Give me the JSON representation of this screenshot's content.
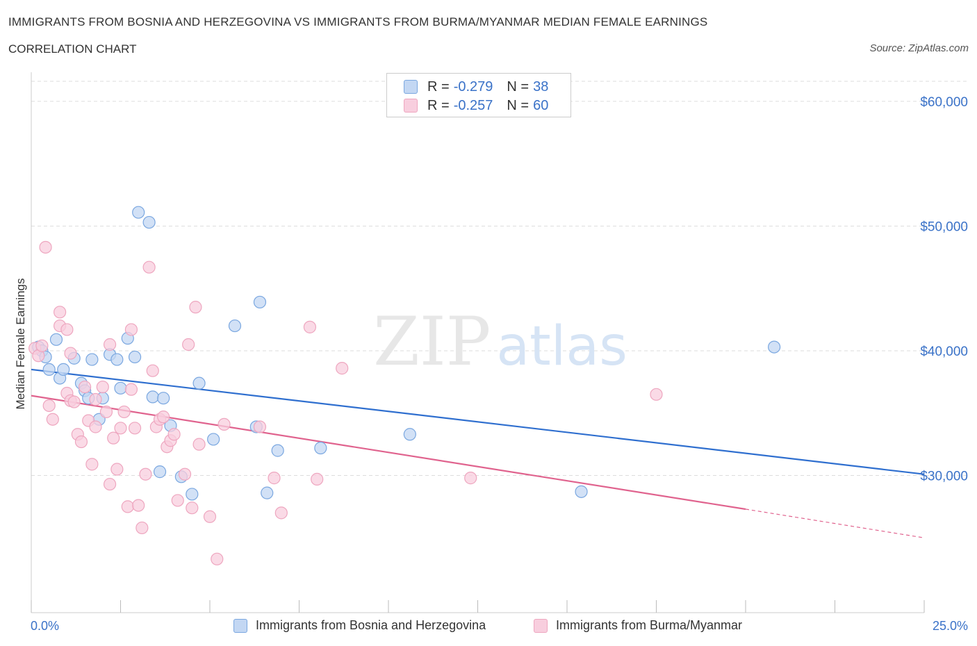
{
  "chart_data": {
    "type": "scatter",
    "title": "IMMIGRANTS FROM BOSNIA AND HERZEGOVINA VS IMMIGRANTS FROM BURMA/MYANMAR MEDIAN FEMALE EARNINGS",
    "subtitle": "CORRELATION CHART",
    "source": "Source: ZipAtlas.com",
    "ylabel": "Median Female Earnings",
    "x_min_label": "0.0%",
    "x_max_label": "25.0%",
    "xlim": [
      0,
      25
    ],
    "ylim": [
      19000,
      62000
    ],
    "y_ticks": [
      30000,
      40000,
      50000,
      60000
    ],
    "y_tick_labels": [
      "$30,000",
      "$40,000",
      "$50,000",
      "$60,000"
    ],
    "watermark": "ZIPatlas",
    "series": [
      {
        "name": "Immigrants from Bosnia and Herzegovina",
        "color": "#7aa7e0",
        "fill": "#c3d7f3",
        "line_color": "#2f6fcf",
        "R": "-0.279",
        "N": "38",
        "trend": {
          "x0": 0,
          "y0": 38500,
          "x1": 25,
          "y1": 30100
        },
        "points": [
          [
            0.2,
            40300
          ],
          [
            0.3,
            40000
          ],
          [
            0.4,
            39500
          ],
          [
            0.5,
            38500
          ],
          [
            0.7,
            40900
          ],
          [
            0.8,
            37800
          ],
          [
            0.9,
            38500
          ],
          [
            1.2,
            39400
          ],
          [
            1.4,
            37400
          ],
          [
            1.5,
            36800
          ],
          [
            1.6,
            36200
          ],
          [
            1.7,
            39300
          ],
          [
            1.9,
            34500
          ],
          [
            2.0,
            36200
          ],
          [
            2.2,
            39700
          ],
          [
            2.4,
            39300
          ],
          [
            2.5,
            37000
          ],
          [
            2.7,
            41000
          ],
          [
            2.9,
            39500
          ],
          [
            3.0,
            51100
          ],
          [
            3.3,
            50300
          ],
          [
            3.4,
            36300
          ],
          [
            3.6,
            30300
          ],
          [
            3.7,
            36200
          ],
          [
            3.9,
            34000
          ],
          [
            4.2,
            29900
          ],
          [
            4.5,
            28500
          ],
          [
            4.7,
            37400
          ],
          [
            5.1,
            32900
          ],
          [
            5.7,
            42000
          ],
          [
            6.3,
            33900
          ],
          [
            6.4,
            43900
          ],
          [
            6.6,
            28600
          ],
          [
            6.9,
            32000
          ],
          [
            8.1,
            32200
          ],
          [
            10.6,
            33300
          ],
          [
            15.4,
            28700
          ],
          [
            20.8,
            40300
          ]
        ]
      },
      {
        "name": "Immigrants from Burma/Myanmar",
        "color": "#eea6bf",
        "fill": "#f8cede",
        "line_color": "#e0638e",
        "R": "-0.257",
        "N": "60",
        "trend": {
          "x0": 0,
          "y0": 36400,
          "x1": 20,
          "y1": 27300,
          "x_ext": 25,
          "y_ext": 25000
        },
        "points": [
          [
            0.1,
            40200
          ],
          [
            0.2,
            39600
          ],
          [
            0.3,
            40400
          ],
          [
            0.4,
            48300
          ],
          [
            0.5,
            35600
          ],
          [
            0.6,
            34500
          ],
          [
            0.8,
            42000
          ],
          [
            0.8,
            43100
          ],
          [
            1.0,
            41700
          ],
          [
            1.0,
            36600
          ],
          [
            1.1,
            39800
          ],
          [
            1.1,
            36000
          ],
          [
            1.2,
            35900
          ],
          [
            1.3,
            33300
          ],
          [
            1.4,
            32700
          ],
          [
            1.5,
            37100
          ],
          [
            1.6,
            34400
          ],
          [
            1.7,
            30900
          ],
          [
            1.8,
            33900
          ],
          [
            1.8,
            36100
          ],
          [
            2.0,
            37100
          ],
          [
            2.1,
            35100
          ],
          [
            2.2,
            40500
          ],
          [
            2.2,
            29300
          ],
          [
            2.3,
            33000
          ],
          [
            2.4,
            30500
          ],
          [
            2.5,
            33800
          ],
          [
            2.6,
            35100
          ],
          [
            2.7,
            27500
          ],
          [
            2.8,
            36900
          ],
          [
            2.8,
            41700
          ],
          [
            2.9,
            33800
          ],
          [
            3.0,
            27600
          ],
          [
            3.1,
            25800
          ],
          [
            3.2,
            30100
          ],
          [
            3.3,
            46700
          ],
          [
            3.4,
            38400
          ],
          [
            3.5,
            33900
          ],
          [
            3.6,
            34500
          ],
          [
            3.7,
            34700
          ],
          [
            3.8,
            32300
          ],
          [
            3.9,
            32800
          ],
          [
            4.0,
            33300
          ],
          [
            4.1,
            28000
          ],
          [
            4.3,
            30100
          ],
          [
            4.4,
            40500
          ],
          [
            4.5,
            27400
          ],
          [
            4.6,
            43500
          ],
          [
            4.7,
            32500
          ],
          [
            5.0,
            26700
          ],
          [
            5.2,
            23300
          ],
          [
            5.4,
            34100
          ],
          [
            6.4,
            33900
          ],
          [
            6.8,
            29800
          ],
          [
            7.0,
            27000
          ],
          [
            7.8,
            41900
          ],
          [
            8.0,
            29700
          ],
          [
            8.7,
            38600
          ],
          [
            12.3,
            29800
          ],
          [
            17.5,
            36500
          ]
        ]
      }
    ]
  },
  "legend": {
    "r_label": "R =",
    "n_label": "N ="
  }
}
